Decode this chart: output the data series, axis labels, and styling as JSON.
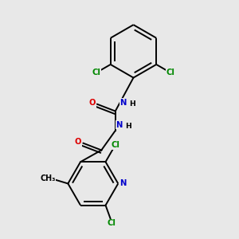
{
  "background_color": "#e8e8e8",
  "atom_colors": {
    "C": "#000000",
    "N": "#0000cc",
    "O": "#dd0000",
    "Cl": "#008800",
    "H": "#000000"
  },
  "bond_color": "#000000",
  "bond_width": 1.4
}
